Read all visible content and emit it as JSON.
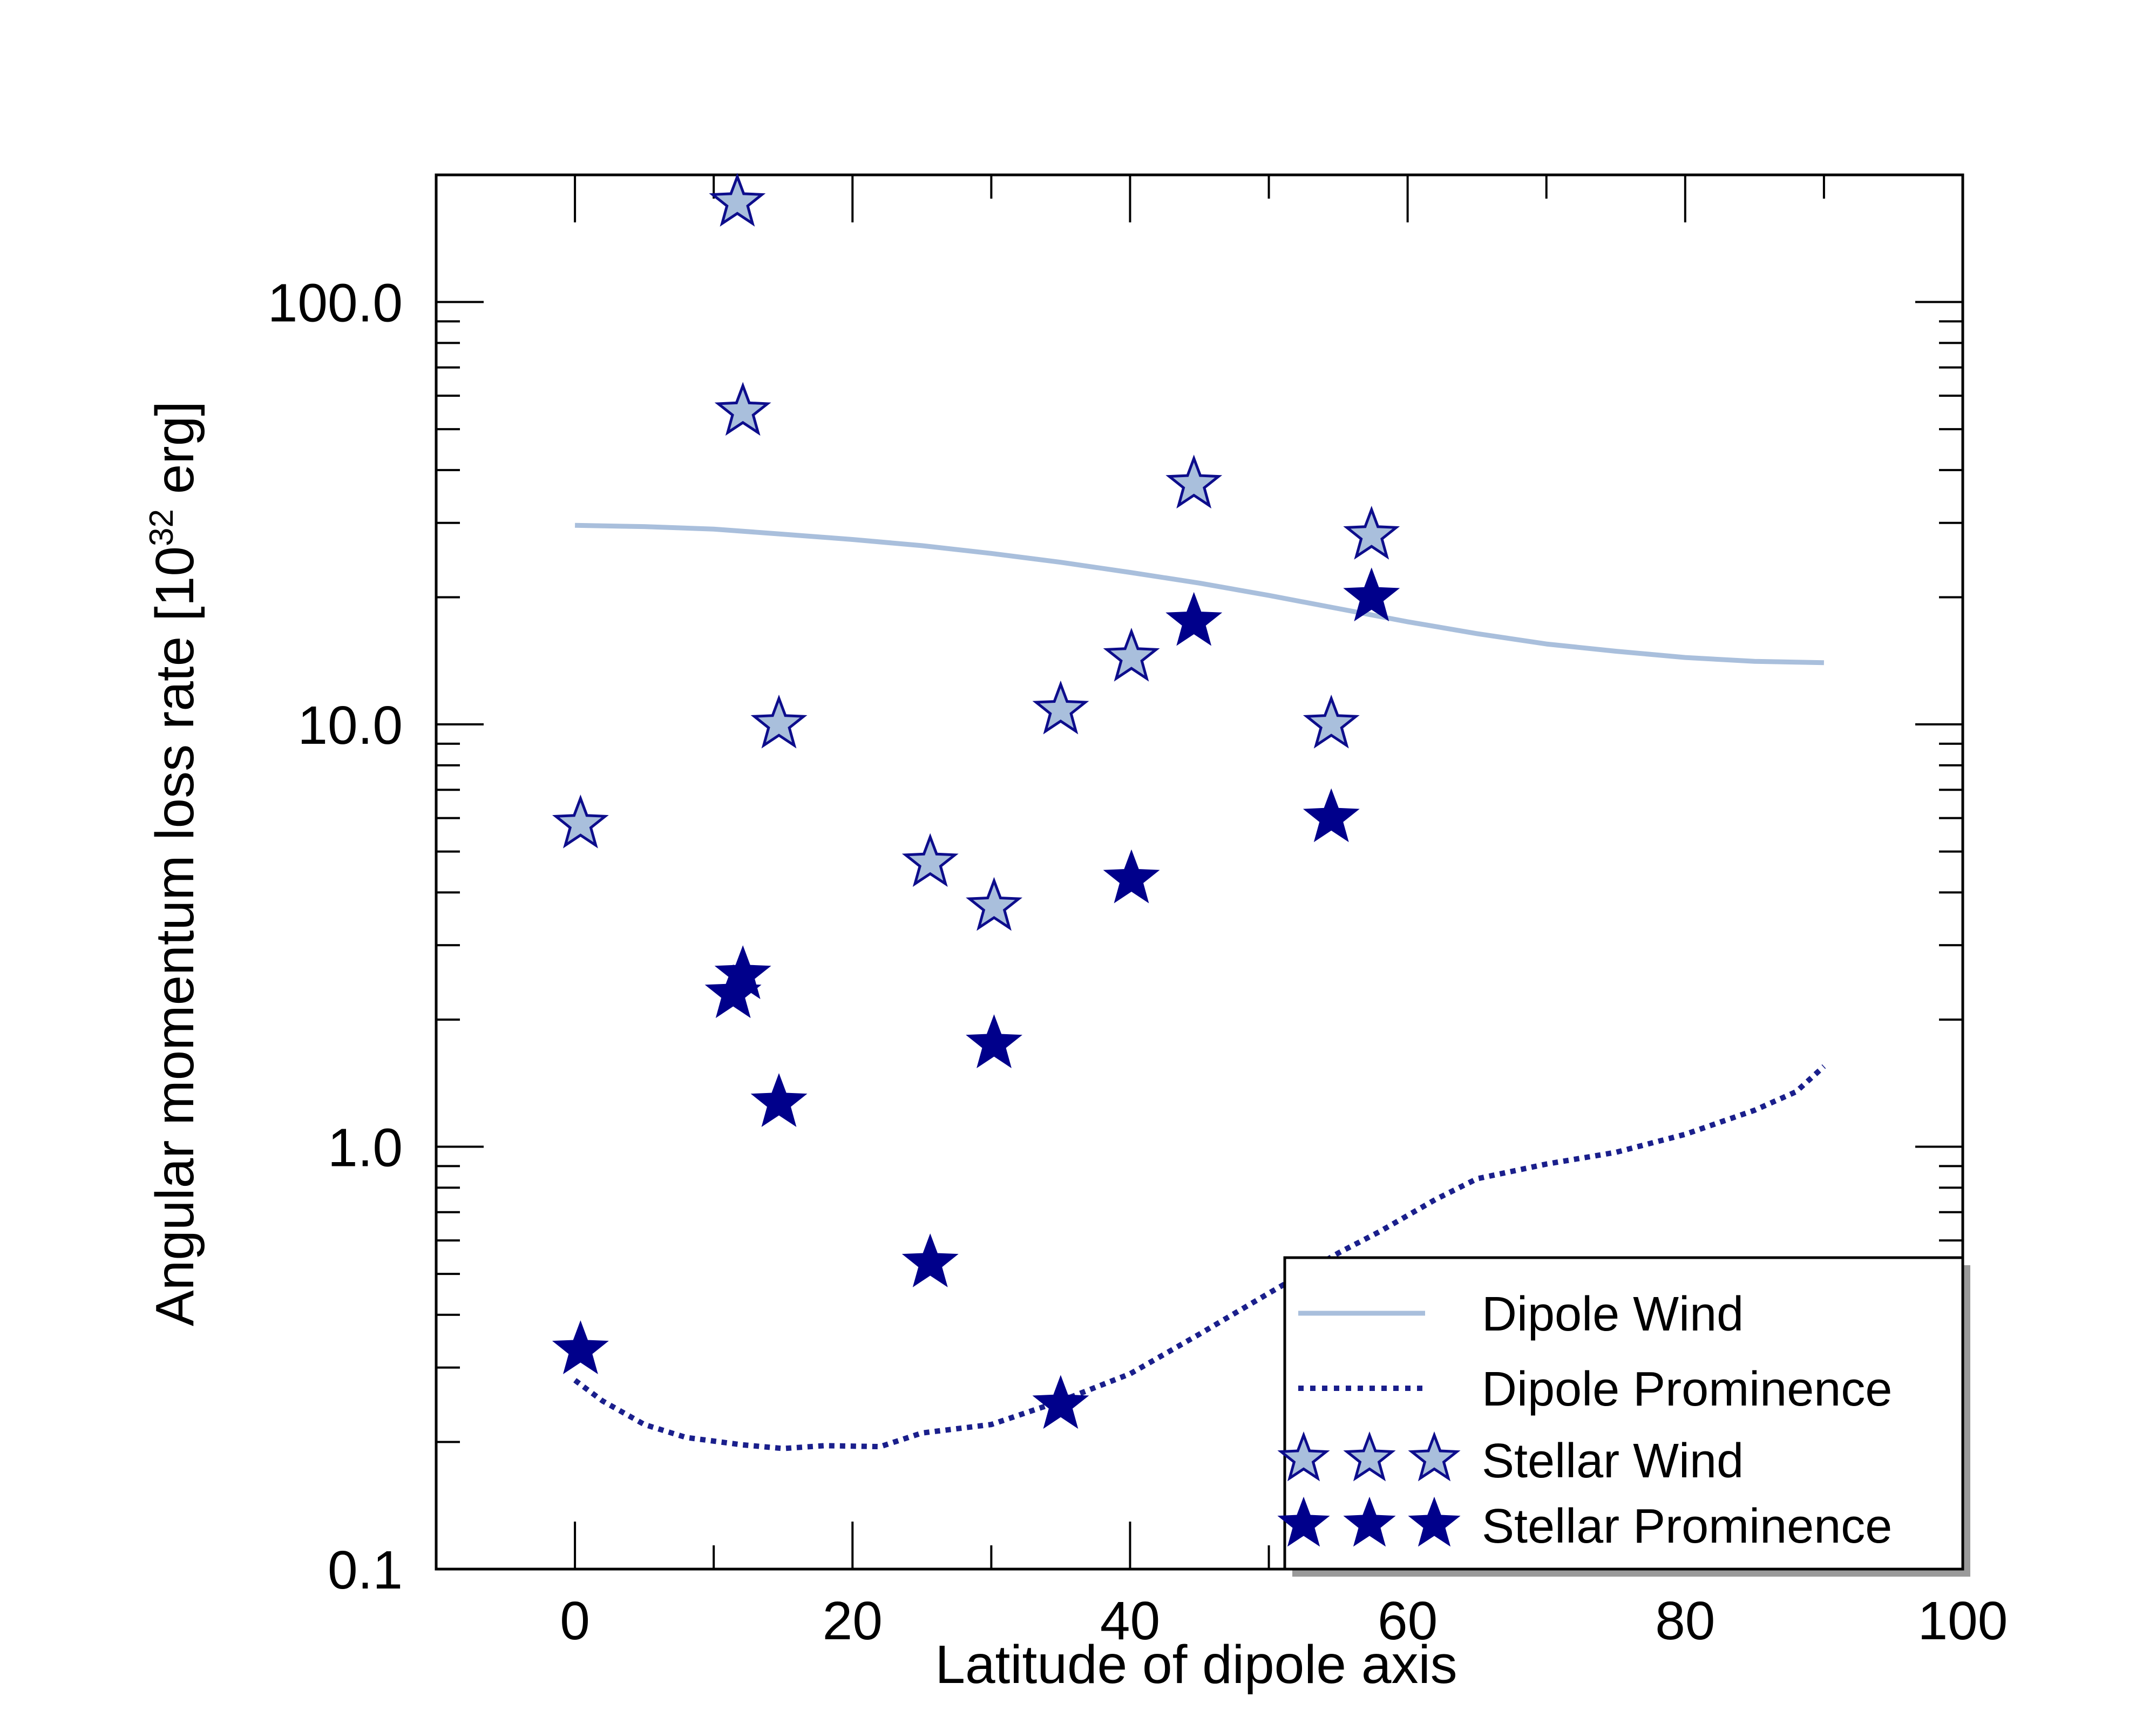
{
  "chart_data": {
    "type": "scatter",
    "title": "",
    "xlabel": "Latitude of dipole axis",
    "ylabel_main": "Angular momentum loss rate [10",
    "ylabel_sup": "32",
    "ylabel_end": " erg]",
    "xscale": "linear",
    "yscale": "log",
    "xlim": [
      -10,
      100
    ],
    "ylim": [
      0.1,
      200
    ],
    "xticks": [
      0,
      20,
      40,
      60,
      80,
      100
    ],
    "xtick_labels": [
      "0",
      "20",
      "40",
      "60",
      "80",
      "100"
    ],
    "yticks": [
      0.1,
      1.0,
      10.0,
      100.0
    ],
    "ytick_labels": [
      "0.1",
      "1.0",
      "10.0",
      "100.0"
    ],
    "legend_position": "bottom-right",
    "series": [
      {
        "name": "Dipole Wind",
        "kind": "line",
        "color": "#a9bfdc",
        "dash": "solid",
        "x": [
          0,
          5,
          10,
          15,
          20,
          25,
          30,
          35,
          40,
          45,
          50,
          55,
          60,
          65,
          70,
          75,
          80,
          85,
          90
        ],
        "y": [
          29.6,
          29.4,
          29.0,
          28.2,
          27.4,
          26.5,
          25.4,
          24.2,
          22.9,
          21.6,
          20.2,
          18.8,
          17.5,
          16.4,
          15.5,
          14.9,
          14.4,
          14.1,
          14.0
        ]
      },
      {
        "name": "Dipole Prominence",
        "kind": "line",
        "color": "#1a1f8c",
        "dash": "dotted",
        "x": [
          0,
          2,
          5,
          8,
          12,
          15,
          18,
          22,
          25,
          30,
          35,
          40,
          45,
          50,
          55,
          58,
          62,
          65,
          70,
          75,
          80,
          85,
          88,
          90
        ],
        "y": [
          0.28,
          0.25,
          0.22,
          0.205,
          0.197,
          0.193,
          0.196,
          0.195,
          0.21,
          0.22,
          0.25,
          0.29,
          0.36,
          0.45,
          0.56,
          0.63,
          0.75,
          0.84,
          0.91,
          0.97,
          1.07,
          1.22,
          1.35,
          1.55
        ]
      },
      {
        "name": "Stellar Wind",
        "kind": "markers",
        "marker": "open-star",
        "fill": "#a9bfdc",
        "stroke": "#0d0d8c",
        "x": [
          0.4,
          11.7,
          12.1,
          14.7,
          25.6,
          30.2,
          35.0,
          40.1,
          44.6,
          54.5,
          57.4
        ],
        "y": [
          5.8,
          172,
          55,
          10.0,
          4.7,
          3.7,
          10.8,
          14.4,
          37,
          10.0,
          28
        ]
      },
      {
        "name": "Stellar Prominence",
        "kind": "markers",
        "marker": "filled-star",
        "fill": "#00008b",
        "stroke": "#00008b",
        "x": [
          0.4,
          11.4,
          12.1,
          14.7,
          25.6,
          30.2,
          35.0,
          40.1,
          44.6,
          54.5,
          57.4
        ],
        "y": [
          0.33,
          2.3,
          2.55,
          1.27,
          0.53,
          1.75,
          0.245,
          4.3,
          17.5,
          6.0,
          20
        ]
      }
    ]
  }
}
